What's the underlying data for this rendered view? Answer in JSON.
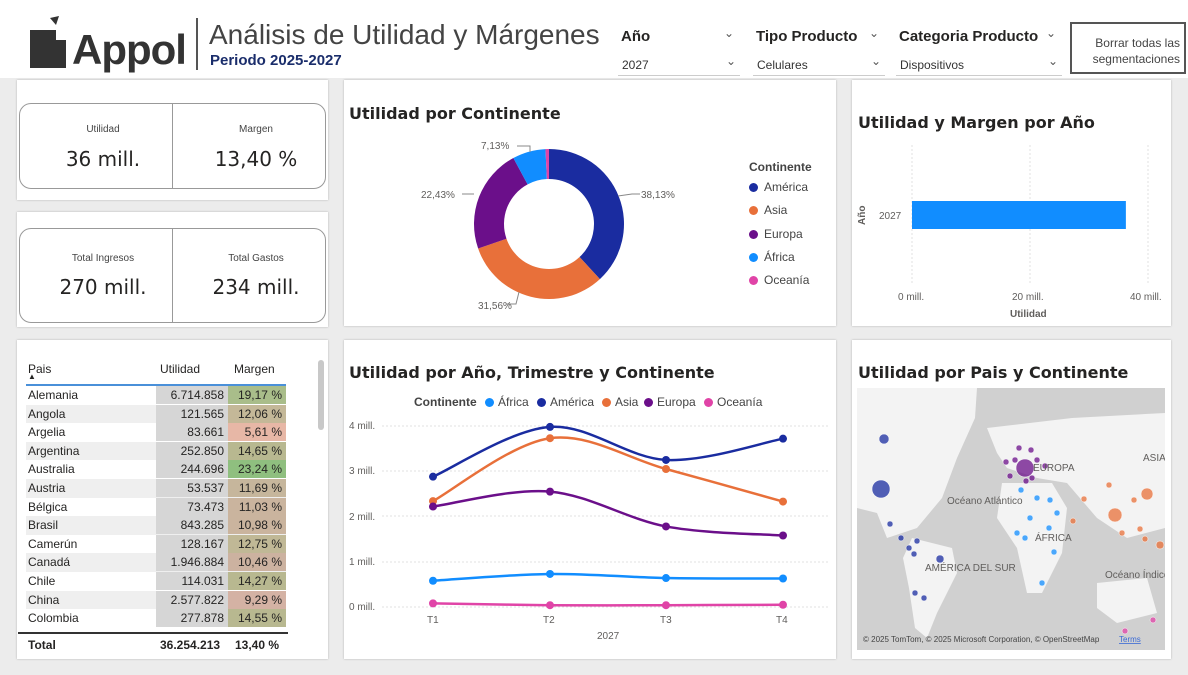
{
  "header": {
    "brand": "Appol",
    "title": "Análisis de Utilidad y Márgenes",
    "subtitle": "Periodo 2025-2027"
  },
  "slicers": [
    {
      "label": "Año",
      "value": "2027"
    },
    {
      "label": "Tipo Producto",
      "value": "Celulares"
    },
    {
      "label": "Categoria Producto",
      "value": "Dispositivos"
    }
  ],
  "clear_button": "Borrar todas las segmentaciones",
  "kpis": {
    "utilidad_label": "Utilidad",
    "utilidad_value": "36 mill.",
    "margen_label": "Margen",
    "margen_value": "13,40 %",
    "ingresos_label": "Total Ingresos",
    "ingresos_value": "270 mill.",
    "gastos_label": "Total Gastos",
    "gastos_value": "234 mill."
  },
  "donut": {
    "title": "Utilidad por Continente",
    "legend_title": "Continente",
    "labels": [
      "38,13%",
      "31,56%",
      "22,43%",
      "7,13%"
    ],
    "legend": [
      {
        "name": "América",
        "color": "#1a2ca0"
      },
      {
        "name": "Asia",
        "color": "#e8703a"
      },
      {
        "name": "Europa",
        "color": "#6b0f8a"
      },
      {
        "name": "África",
        "color": "#118dff"
      },
      {
        "name": "Oceanía",
        "color": "#e044a7"
      }
    ]
  },
  "bar": {
    "title": "Utilidad y Margen por Año",
    "ylabel": "Año",
    "category": "2027",
    "xticks": [
      "0 mill.",
      "20 mill.",
      "40 mill."
    ],
    "xlabel": "Utilidad"
  },
  "table": {
    "headers": [
      "Pais",
      "Utilidad",
      "Margen"
    ],
    "rows": [
      [
        "Alemania",
        "6.714.858",
        "19,17 %"
      ],
      [
        "Angola",
        "121.565",
        "12,06 %"
      ],
      [
        "Argelia",
        "83.661",
        "5,61 %"
      ],
      [
        "Argentina",
        "252.850",
        "14,65 %"
      ],
      [
        "Australia",
        "244.696",
        "23,24 %"
      ],
      [
        "Austria",
        "53.537",
        "11,69 %"
      ],
      [
        "Bélgica",
        "73.473",
        "11,03 %"
      ],
      [
        "Brasil",
        "843.285",
        "10,98 %"
      ],
      [
        "Camerún",
        "128.167",
        "12,75 %"
      ],
      [
        "Canadá",
        "1.946.884",
        "10,46 %"
      ],
      [
        "Chile",
        "114.031",
        "14,27 %"
      ],
      [
        "China",
        "2.577.822",
        "9,29 %"
      ],
      [
        "Colombia",
        "277.878",
        "14,55 %"
      ]
    ],
    "margin_colors": [
      "#a9bd8a",
      "#c4b898",
      "#e7b7a6",
      "#b8b890",
      "#8fbf7f",
      "#c6b69c",
      "#cab49e",
      "#cab49e",
      "#c0b896",
      "#ccb2a0",
      "#b8b890",
      "#d4b2a4",
      "#b8b890"
    ],
    "total_label": "Total",
    "total_util": "36.254.213",
    "total_margin": "13,40 %"
  },
  "line": {
    "title": "Utilidad por Año, Trimestre y Continente",
    "legend_title": "Continente",
    "yticks": [
      "4 mill.",
      "3 mill.",
      "2 mill.",
      "1 mill.",
      "0 mill."
    ],
    "xticks": [
      "T1",
      "T2",
      "T3",
      "T4"
    ],
    "xlabel": "2027"
  },
  "map": {
    "title": "Utilidad por Pais y Continente",
    "labels": [
      "EUROPA",
      "ASIA",
      "Océano Atlántico",
      "ÁFRICA",
      "AMÉRICA DEL SUR",
      "Océano Índico"
    ],
    "attribution": "© 2025 TomTom, © 2025 Microsoft Corporation, © OpenStreetMap",
    "terms": "Terms"
  },
  "chart_data": [
    {
      "type": "pie",
      "title": "Utilidad por Continente",
      "categories": [
        "América",
        "Asia",
        "Europa",
        "África",
        "Oceanía"
      ],
      "values": [
        38.13,
        31.56,
        22.43,
        7.13,
        0.75
      ],
      "legend": "right"
    },
    {
      "type": "bar",
      "title": "Utilidad y Margen por Año",
      "categories": [
        "2027"
      ],
      "values": [
        36.25
      ],
      "xlabel": "Utilidad",
      "ylabel": "Año",
      "xlim": [
        0,
        40
      ]
    },
    {
      "type": "line",
      "title": "Utilidad por Año, Trimestre y Continente",
      "categories": [
        "T1",
        "T2",
        "T3",
        "T4"
      ],
      "xlabel": "2027",
      "ylim": [
        0,
        4
      ],
      "legend": "top",
      "series": [
        {
          "name": "África",
          "values": [
            0.58,
            0.73,
            0.64,
            0.63
          ],
          "color": "#118dff"
        },
        {
          "name": "América",
          "values": [
            2.88,
            3.98,
            3.25,
            3.72
          ],
          "color": "#1a2ca0"
        },
        {
          "name": "Asia",
          "values": [
            2.34,
            3.73,
            3.05,
            2.33
          ],
          "color": "#e8703a"
        },
        {
          "name": "Europa",
          "values": [
            2.22,
            2.55,
            1.78,
            1.58
          ],
          "color": "#6b0f8a"
        },
        {
          "name": "Oceanía",
          "values": [
            0.08,
            0.04,
            0.04,
            0.05
          ],
          "color": "#e044a7"
        }
      ]
    }
  ]
}
